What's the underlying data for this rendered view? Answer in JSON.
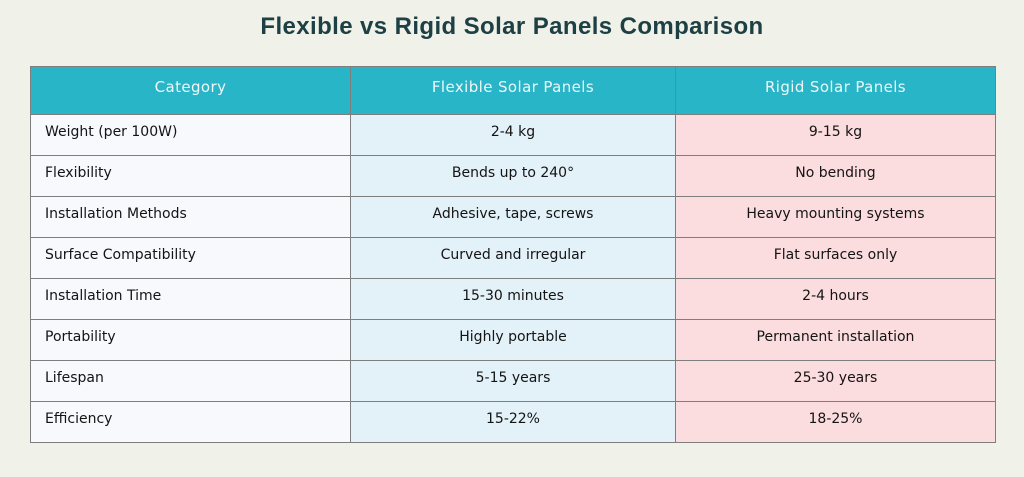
{
  "chart_data": {
    "type": "table",
    "title": "Flexible vs Rigid Solar Panels Comparison",
    "columns": [
      "Category",
      "Flexible Solar Panels",
      "Rigid Solar Panels"
    ],
    "rows": [
      [
        "Weight (per 100W)",
        "2-4 kg",
        "9-15 kg"
      ],
      [
        "Flexibility",
        "Bends up to 240°",
        "No bending"
      ],
      [
        "Installation Methods",
        "Adhesive, tape, screws",
        "Heavy mounting systems"
      ],
      [
        "Surface Compatibility",
        "Curved and irregular",
        "Flat surfaces only"
      ],
      [
        "Installation Time",
        "15-30 minutes",
        "2-4 hours"
      ],
      [
        "Portability",
        "Highly portable",
        "Permanent installation"
      ],
      [
        "Lifespan",
        "5-15 years",
        "25-30 years"
      ],
      [
        "Efficiency",
        "15-22%",
        "18-25%"
      ]
    ],
    "layout": {
      "legend": "none",
      "grid": "table-borders",
      "category_column_align": "left",
      "value_columns_align": "center"
    }
  },
  "colors": {
    "page_background": "#f0f1e9",
    "title_text": "#1d4045",
    "header_background": "#28b5c8",
    "header_text": "#eef7f8",
    "category_cell_background": "#f8f9fd",
    "flexible_cell_background": "#e3f1f8",
    "rigid_cell_background": "#fbdcdf",
    "cell_text": "#141414",
    "border": "#7e7e7e"
  }
}
